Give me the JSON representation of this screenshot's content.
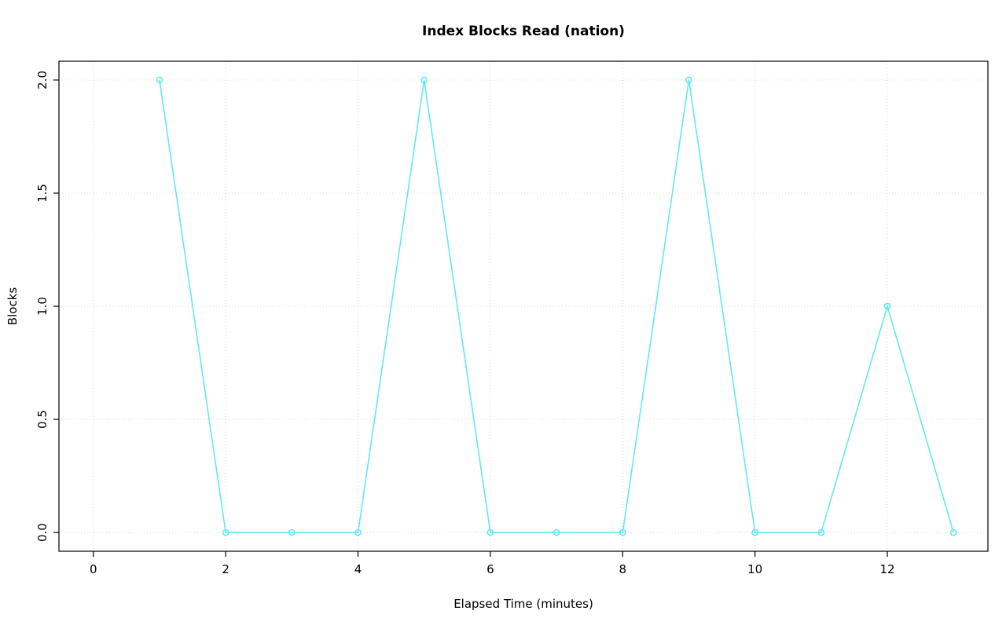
{
  "chart_data": {
    "type": "line",
    "title": "Index Blocks Read (nation)",
    "xlabel": "Elapsed Time (minutes)",
    "ylabel": "Blocks",
    "x": [
      1,
      2,
      3,
      4,
      5,
      6,
      7,
      8,
      9,
      10,
      11,
      12,
      13
    ],
    "y": [
      2,
      0,
      0,
      0,
      2,
      0,
      0,
      0,
      2,
      0,
      0,
      1,
      0
    ],
    "xlim": [
      -0.52,
      13.52
    ],
    "ylim": [
      -0.083,
      2.083
    ],
    "x_ticks": [
      0,
      2,
      4,
      6,
      8,
      10,
      12
    ],
    "x_tick_labels": [
      "0",
      "2",
      "4",
      "6",
      "8",
      "10",
      "12"
    ],
    "y_ticks": [
      0.0,
      0.5,
      1.0,
      1.5,
      2.0
    ],
    "y_tick_labels": [
      "0.0",
      "0.5",
      "1.0",
      "1.5",
      "2.0"
    ],
    "grid": true,
    "legend": "none",
    "marker": "open-circle",
    "line_color": "#63E8F2",
    "grid_color": "#d6d6d6"
  }
}
